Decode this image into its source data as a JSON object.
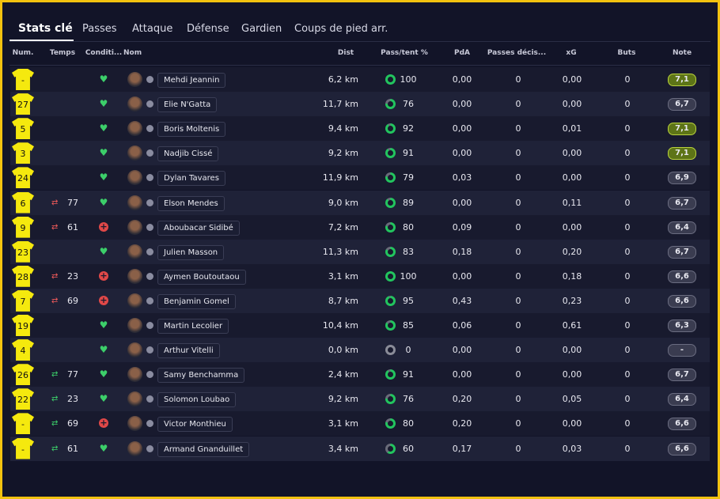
{
  "tabs": [
    "Stats clé",
    "Passes",
    "Attaque",
    "Défense",
    "Gardien",
    "Coups de pied arr."
  ],
  "active_tab": 0,
  "table": {
    "headers": [
      "Num.",
      "Temps",
      "Conditi...",
      "Nom",
      "Dist",
      "Pass/tent %",
      "PdA",
      "Passes décis...",
      "xG",
      "Buts",
      "Note"
    ],
    "rows": [
      {
        "num": "-",
        "temps": "",
        "condition": "fit",
        "name": "Mehdi Jeannin",
        "dist": "6,2 km",
        "pass": "100",
        "pda": "0,00",
        "passes_dec": "0",
        "xg": "0,00",
        "buts": "0",
        "note": "7,1",
        "highlight": true
      },
      {
        "num": "27",
        "temps": "",
        "condition": "fit",
        "name": "Elie N'Gatta",
        "dist": "11,7 km",
        "pass": "76",
        "pda": "0,00",
        "passes_dec": "0",
        "xg": "0,00",
        "buts": "0",
        "note": "6,7"
      },
      {
        "num": "5",
        "temps": "",
        "condition": "fit",
        "name": "Boris Moltenis",
        "dist": "9,4 km",
        "pass": "92",
        "pda": "0,00",
        "passes_dec": "0",
        "xg": "0,01",
        "buts": "0",
        "note": "7,1",
        "highlight": true
      },
      {
        "num": "3",
        "temps": "",
        "condition": "fit",
        "name": "Nadjib Cissé",
        "dist": "9,2 km",
        "pass": "91",
        "pda": "0,00",
        "passes_dec": "0",
        "xg": "0,00",
        "buts": "0",
        "note": "7,1",
        "highlight": true
      },
      {
        "num": "24",
        "temps": "",
        "condition": "fit",
        "name": "Dylan Tavares",
        "dist": "11,9 km",
        "pass": "79",
        "pda": "0,03",
        "passes_dec": "0",
        "xg": "0,00",
        "buts": "0",
        "note": "6,9"
      },
      {
        "num": "6",
        "temps": "77",
        "sub": "off",
        "condition": "fit",
        "name": "Elson Mendes",
        "dist": "9,0 km",
        "pass": "89",
        "pda": "0,00",
        "passes_dec": "0",
        "xg": "0,11",
        "buts": "0",
        "note": "6,7"
      },
      {
        "num": "9",
        "temps": "61",
        "sub": "off",
        "condition": "injured",
        "name": "Aboubacar Sidibé",
        "dist": "7,2 km",
        "pass": "80",
        "pda": "0,09",
        "passes_dec": "0",
        "xg": "0,00",
        "buts": "0",
        "note": "6,4"
      },
      {
        "num": "23",
        "temps": "",
        "condition": "fit",
        "name": "Julien Masson",
        "dist": "11,3 km",
        "pass": "83",
        "pda": "0,18",
        "passes_dec": "0",
        "xg": "0,20",
        "buts": "0",
        "note": "6,7"
      },
      {
        "num": "28",
        "temps": "23",
        "sub": "off",
        "condition": "injured",
        "name": "Aymen Boutoutaou",
        "dist": "3,1 km",
        "pass": "100",
        "pda": "0,00",
        "passes_dec": "0",
        "xg": "0,18",
        "buts": "0",
        "note": "6,6"
      },
      {
        "num": "7",
        "temps": "69",
        "sub": "off",
        "condition": "injured",
        "name": "Benjamin Gomel",
        "dist": "8,7 km",
        "pass": "95",
        "pda": "0,43",
        "passes_dec": "0",
        "xg": "0,23",
        "buts": "0",
        "note": "6,6"
      },
      {
        "num": "19",
        "temps": "",
        "condition": "fit",
        "name": "Martin Lecolier",
        "dist": "10,4 km",
        "pass": "85",
        "pda": "0,06",
        "passes_dec": "0",
        "xg": "0,61",
        "buts": "0",
        "note": "6,3"
      },
      {
        "num": "4",
        "temps": "",
        "condition": "fit",
        "name": "Arthur Vitelli",
        "dist": "0,0 km",
        "pass": "0",
        "pda": "0,00",
        "passes_dec": "0",
        "xg": "0,00",
        "buts": "0",
        "note": "-"
      },
      {
        "num": "26",
        "temps": "77",
        "sub": "on",
        "condition": "fit",
        "name": "Samy Benchamma",
        "dist": "2,4 km",
        "pass": "91",
        "pda": "0,00",
        "passes_dec": "0",
        "xg": "0,00",
        "buts": "0",
        "note": "6,7"
      },
      {
        "num": "22",
        "temps": "23",
        "sub": "on",
        "condition": "fit",
        "name": "Solomon Loubao",
        "dist": "9,2 km",
        "pass": "76",
        "pda": "0,20",
        "passes_dec": "0",
        "xg": "0,05",
        "buts": "0",
        "note": "6,4"
      },
      {
        "num": "-",
        "temps": "69",
        "sub": "on",
        "condition": "injured",
        "name": "Victor Monthieu",
        "dist": "3,1 km",
        "pass": "80",
        "pda": "0,20",
        "passes_dec": "0",
        "xg": "0,00",
        "buts": "0",
        "note": "6,6"
      },
      {
        "num": "-",
        "temps": "61",
        "sub": "on",
        "condition": "fit",
        "name": "Armand Gnanduillet",
        "dist": "3,4 km",
        "pass": "60",
        "pda": "0,17",
        "passes_dec": "0",
        "xg": "0,03",
        "buts": "0",
        "note": "6,6"
      }
    ]
  }
}
